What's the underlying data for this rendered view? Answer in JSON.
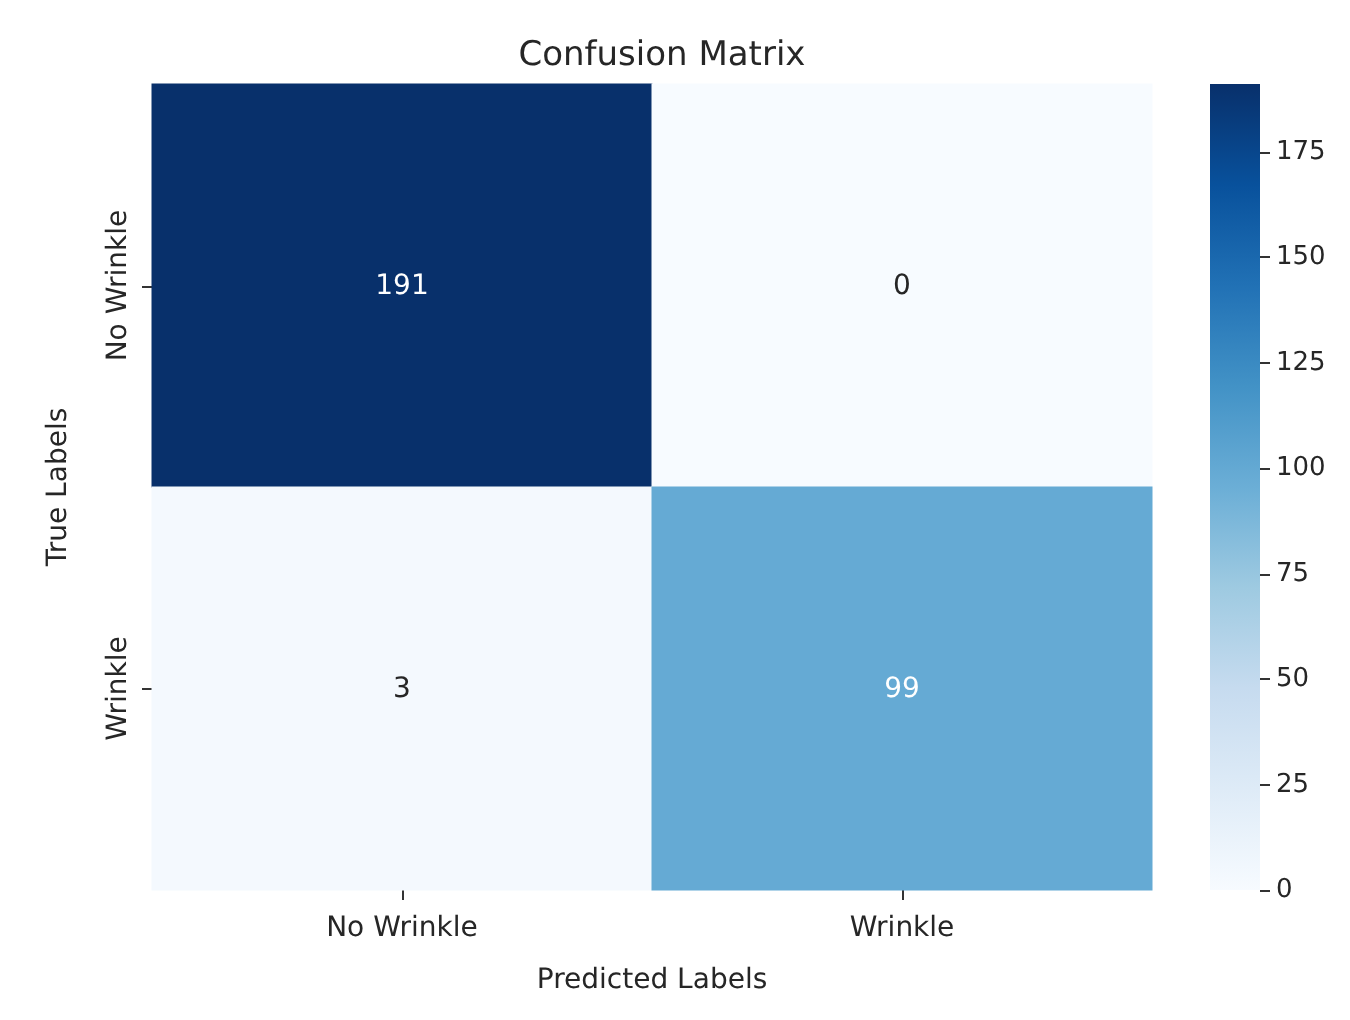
{
  "chart_data": {
    "type": "heatmap",
    "title": "Confusion Matrix",
    "xlabel": "Predicted Labels",
    "ylabel": "True Labels",
    "categories": [
      "No Wrinkle",
      "Wrinkle"
    ],
    "y_categories": [
      "No Wrinkle",
      "Wrinkle"
    ],
    "cells": [
      [
        191,
        0
      ],
      [
        3,
        99
      ]
    ],
    "clim": [
      0,
      191
    ],
    "cticks": [
      0,
      25,
      50,
      75,
      100,
      125,
      150,
      175
    ],
    "data_labels": true,
    "grid": false
  }
}
